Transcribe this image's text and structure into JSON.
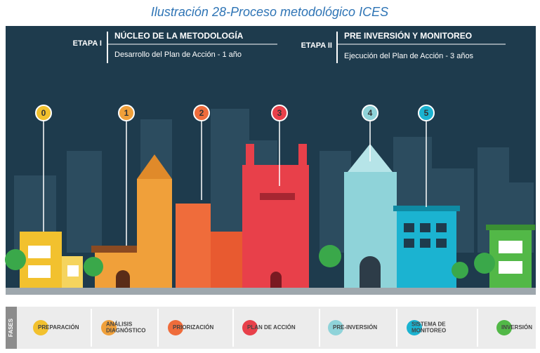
{
  "caption": "Ilustración 28-Proceso metodológico ICES",
  "header": {
    "stage1": {
      "label": "ETAPA I",
      "title": "NÚCLEO DE LA METODOLOGÍA",
      "subtitle": "Desarrollo del Plan de Acción - 1 año"
    },
    "stage2": {
      "label": "ETAPA II",
      "title": "PRE INVERSIÓN Y MONITOREO",
      "subtitle": "Ejecución del Plan de Acción - 3 años"
    }
  },
  "milestones": [
    "0",
    "1",
    "2",
    "3",
    "4",
    "5"
  ],
  "phases": {
    "label": "FASES",
    "items": [
      [
        "PREPARACIÓN"
      ],
      [
        "ANÁLISIS",
        "DIAGNÓSTICO"
      ],
      [
        "PRIORIZACIÓN"
      ],
      [
        "PLAN DE ACCIÓN"
      ],
      [
        "PRE-INVERSIÓN"
      ],
      [
        "SISTEMA DE",
        "MONITOREO"
      ],
      [
        "INVERSIÓN"
      ]
    ]
  }
}
